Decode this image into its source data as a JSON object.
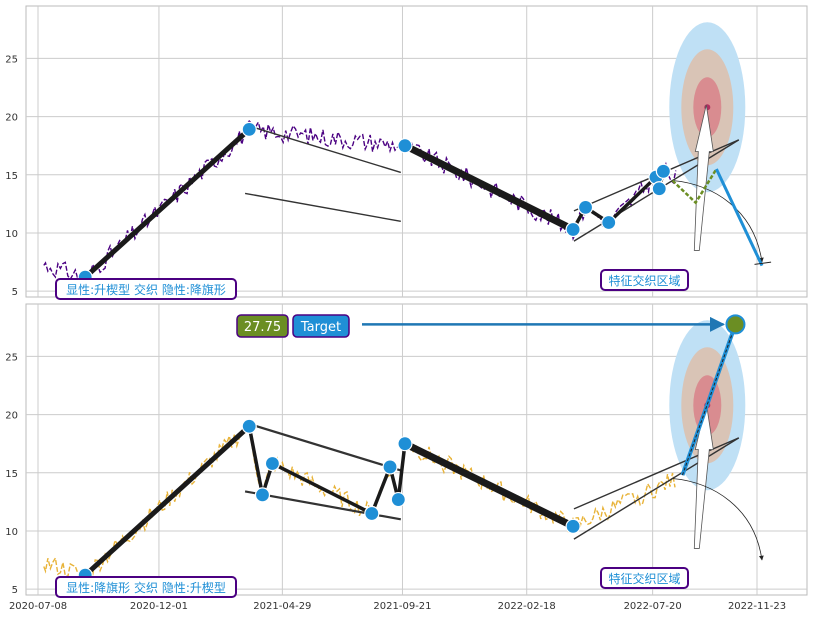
{
  "chart_data": [
    {
      "type": "line",
      "title": "",
      "xlabel": "",
      "ylabel": "",
      "ylim": [
        4.5,
        29.5
      ],
      "yticks": [
        5,
        10,
        15,
        20,
        25
      ],
      "grid": true,
      "line_color": "#4b0082",
      "accent_color": "#1f8fd6",
      "label_box": {
        "text": "显性:升楔型 交织 隐性:降旗形"
      },
      "zone_box": {
        "text": "特征交织区域"
      },
      "pivots": [
        {
          "date": "2020-09-03",
          "value": 6.2
        },
        {
          "date": "2021-03-20",
          "value": 18.9
        },
        {
          "date": "2021-09-24",
          "value": 17.5
        },
        {
          "date": "2022-04-15",
          "value": 10.3
        },
        {
          "date": "2022-04-30",
          "value": 12.2
        },
        {
          "date": "2022-05-28",
          "value": 10.9
        },
        {
          "date": "2022-07-28",
          "value": 13.8
        },
        {
          "date": "2022-07-24",
          "value": 14.8
        },
        {
          "date": "2022-08-02",
          "value": 15.3
        }
      ],
      "trendlines": [
        {
          "from": {
            "date": "2021-03-15",
            "value": 19.3
          },
          "to": {
            "date": "2021-09-19",
            "value": 15.2
          }
        },
        {
          "from": {
            "date": "2021-03-15",
            "value": 13.4
          },
          "to": {
            "date": "2021-09-19",
            "value": 11.0
          }
        },
        {
          "from": {
            "date": "2022-04-16",
            "value": 9.3
          },
          "to": {
            "date": "2022-11-01",
            "value": 18.0
          }
        },
        {
          "from": {
            "date": "2022-04-16",
            "value": 11.9
          },
          "to": {
            "date": "2022-11-01",
            "value": 18.0
          }
        }
      ],
      "forecast_path": [
        {
          "date": "2022-08-13",
          "value": 14.5
        },
        {
          "date": "2022-09-10",
          "value": 12.6
        },
        {
          "date": "2022-10-05",
          "value": 15.5
        },
        {
          "date": "2022-11-29",
          "value": 7.2
        }
      ],
      "target_ellipse": {
        "date": "2022-09-24",
        "value": 20.8
      }
    },
    {
      "type": "line",
      "title": "",
      "xlabel": "",
      "ylabel": "",
      "ylim": [
        4.5,
        29.5
      ],
      "yticks": [
        5,
        10,
        15,
        20,
        25
      ],
      "xticks": [
        "2020-07-08",
        "2020-12-01",
        "2021-04-29",
        "2021-09-21",
        "2022-02-18",
        "2022-07-20",
        "2022-11-23"
      ],
      "grid": true,
      "line_color": "#e8b338",
      "accent_color": "#1f8fd6",
      "label_box": {
        "text": "显性:降旗形 交织 隐性:升楔型"
      },
      "zone_box": {
        "text": "特征交织区域"
      },
      "target": {
        "value_label": "27.75",
        "label": "Target",
        "date": "2022-10-28",
        "value": 27.75,
        "value_color": "#6b8e23"
      },
      "pivots": [
        {
          "date": "2020-09-03",
          "value": 6.2
        },
        {
          "date": "2021-03-20",
          "value": 19.0
        },
        {
          "date": "2021-04-05",
          "value": 13.1
        },
        {
          "date": "2021-04-17",
          "value": 15.8
        },
        {
          "date": "2021-08-15",
          "value": 11.5
        },
        {
          "date": "2021-09-06",
          "value": 15.5
        },
        {
          "date": "2021-09-16",
          "value": 12.7
        },
        {
          "date": "2021-09-24",
          "value": 17.5
        },
        {
          "date": "2022-04-15",
          "value": 10.4
        }
      ],
      "trendlines": [
        {
          "from": {
            "date": "2021-03-15",
            "value": 19.3
          },
          "to": {
            "date": "2021-09-19",
            "value": 15.2
          }
        },
        {
          "from": {
            "date": "2021-03-15",
            "value": 13.4
          },
          "to": {
            "date": "2021-09-19",
            "value": 11.0
          }
        },
        {
          "from": {
            "date": "2022-04-16",
            "value": 9.3
          },
          "to": {
            "date": "2022-11-01",
            "value": 18.0
          }
        },
        {
          "from": {
            "date": "2022-04-16",
            "value": 11.9
          },
          "to": {
            "date": "2022-11-01",
            "value": 18.0
          }
        }
      ],
      "target_ellipse": {
        "date": "2022-09-24",
        "value": 20.8
      }
    }
  ]
}
